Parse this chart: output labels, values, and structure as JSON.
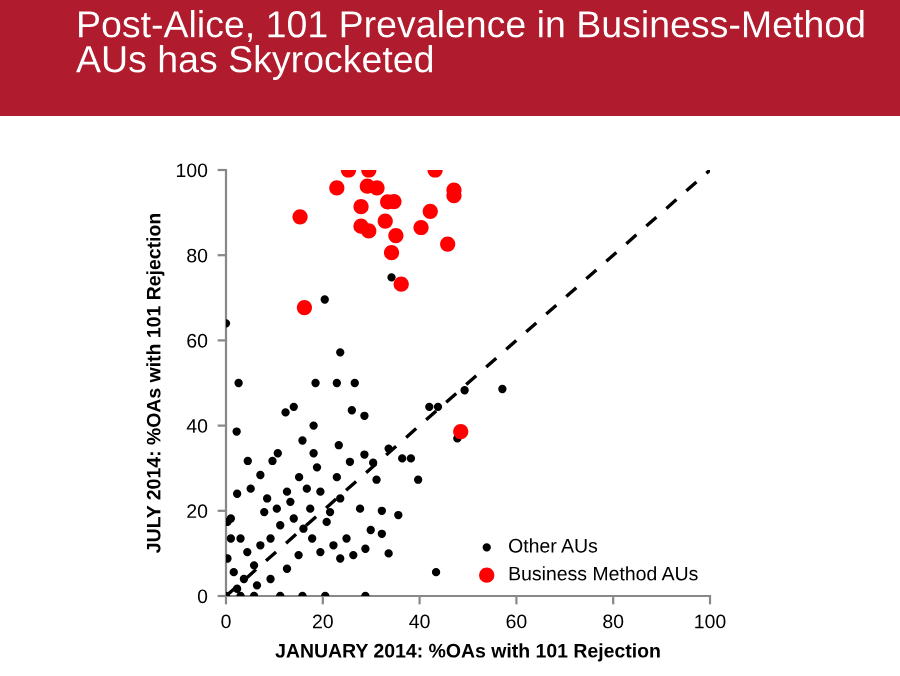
{
  "chart_data": {
    "type": "scatter",
    "title": "Post-Alice, 101 Prevalence in Business-Method AUs has Skyrocketed",
    "xlabel": "JANUARY 2014: %OAs with 101 Rejection",
    "ylabel": "JULY 2014: %OAs with 101 Rejection",
    "xlim": [
      0,
      100
    ],
    "ylim": [
      0,
      100
    ],
    "xticks": [
      0,
      20,
      40,
      60,
      80,
      100
    ],
    "yticks": [
      0,
      20,
      40,
      60,
      80,
      100
    ],
    "grid": false,
    "legend": "bottom right",
    "marker": "circle",
    "series": [
      {
        "name": "Other AUs",
        "color": "#000000",
        "x": [
          0,
          34.2,
          20.4,
          23.6,
          2.6,
          18.5,
          22.9,
          26.6,
          57.1,
          49.3,
          12.3,
          14,
          26,
          28.6,
          18.1,
          42,
          43.8,
          2.2,
          15.8,
          23.3,
          33.6,
          47.8,
          4.5,
          9.6,
          10.7,
          18.1,
          18.8,
          25.6,
          28.6,
          30.4,
          36.4,
          38.2,
          39.7,
          31.1,
          22.9,
          15.1,
          7.1,
          1,
          2.3,
          5.1,
          8.5,
          12.6,
          16.7,
          19.5,
          23.6,
          27.7,
          32.2,
          35.6,
          29.9,
          32.2,
          33.6,
          28.8,
          43.4,
          28.8,
          15.8,
          11.2,
          20.5,
          0,
          3,
          5.8,
          0.3,
          1.6,
          3.7,
          5.8,
          7.1,
          9.2,
          11.2,
          14,
          16,
          17.8,
          20.8,
          22.2,
          24.9,
          26.3,
          23.6,
          19.5,
          15,
          12.6,
          9.2,
          6.4,
          2.3,
          4.4,
          3,
          7.9,
          10.5,
          13.3,
          17.4,
          21.5,
          1,
          0.3
        ],
        "values": [
          64,
          74.8,
          69.6,
          57.2,
          50,
          50,
          50,
          50,
          48.6,
          48.3,
          43.1,
          44.4,
          43.6,
          42.3,
          40,
          44.4,
          44.4,
          38.6,
          36.5,
          35.4,
          34.6,
          37,
          31.7,
          31.7,
          33.5,
          33.5,
          30.2,
          31.5,
          33.2,
          31.3,
          32.3,
          32.3,
          27.3,
          27.3,
          27.9,
          27.9,
          28.4,
          18.2,
          24,
          25.2,
          22.9,
          24.5,
          25.2,
          24.5,
          22.9,
          20.5,
          20,
          19,
          15.5,
          14.6,
          10,
          11.1,
          5.6,
          0,
          0,
          0,
          0,
          0,
          0,
          0,
          8.8,
          5.6,
          4,
          7.2,
          11.9,
          13.5,
          16.6,
          18.2,
          15.8,
          13.5,
          17.4,
          11.9,
          13.5,
          9.6,
          8.8,
          10.3,
          9.6,
          6.4,
          4,
          2.5,
          1.7,
          10.3,
          13.5,
          19.7,
          20.5,
          22.1,
          20.5,
          19.7,
          13.5,
          17.4
        ]
      },
      {
        "name": "Business Method AUs",
        "color": "#ff0000",
        "x": [
          15.3,
          25.3,
          29.5,
          22.9,
          29.2,
          31.2,
          27.9,
          33.4,
          34.7,
          27.9,
          29.5,
          32.9,
          35.1,
          34.2,
          36.2,
          40.3,
          42.2,
          43.2,
          47.1,
          47.1,
          45.8,
          16.2,
          48.5
        ],
        "values": [
          89,
          100,
          100,
          95.8,
          96.2,
          95.8,
          91.4,
          92.5,
          92.6,
          86.8,
          85.7,
          88,
          84.6,
          80.6,
          73.2,
          86.5,
          90.3,
          100,
          95.3,
          94,
          82.6,
          67.7,
          38.6
        ]
      },
      {
        "color": "#000000",
        "type": "line",
        "line_style": "dashed",
        "marker": "none",
        "x": [
          0,
          100
        ],
        "values": [
          0,
          100
        ]
      }
    ]
  }
}
